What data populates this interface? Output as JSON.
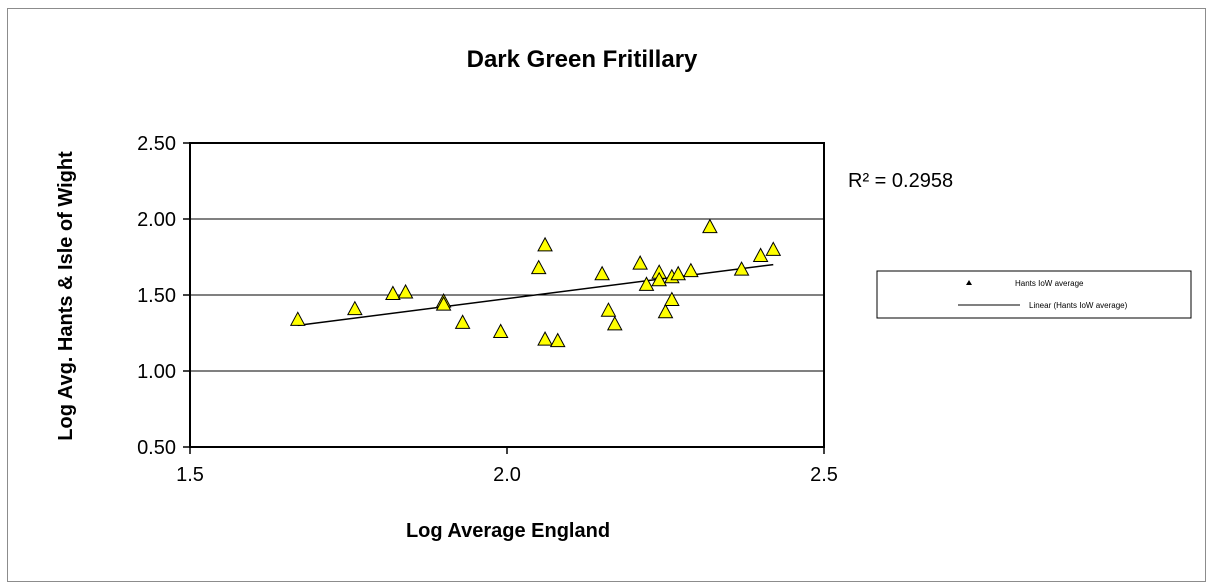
{
  "chart_data": {
    "type": "scatter",
    "title": "Dark Green Fritillary",
    "xlabel": "Log Average England",
    "ylabel": "Log Avg. Hants & Isle of Wight",
    "xlim": [
      1.5,
      2.5
    ],
    "ylim": [
      0.5,
      2.5
    ],
    "x_ticks": [
      "1.5",
      "2.0",
      "2.5"
    ],
    "y_ticks": [
      "0.50",
      "1.00",
      "1.50",
      "2.00",
      "2.50"
    ],
    "x_tick_values": [
      1.5,
      2.0,
      2.5
    ],
    "y_tick_values": [
      0.5,
      1.0,
      1.5,
      2.0,
      2.5
    ],
    "grid": "horizontal",
    "legend_position": "right",
    "series": [
      {
        "name": "Hants IoW average",
        "marker": "triangle",
        "color": "#ffff00",
        "edge_color": "#000000",
        "points": [
          [
            1.67,
            1.34
          ],
          [
            1.76,
            1.41
          ],
          [
            1.82,
            1.51
          ],
          [
            1.84,
            1.52
          ],
          [
            1.9,
            1.46
          ],
          [
            1.9,
            1.44
          ],
          [
            1.93,
            1.32
          ],
          [
            1.99,
            1.26
          ],
          [
            2.05,
            1.68
          ],
          [
            2.06,
            1.83
          ],
          [
            2.06,
            1.21
          ],
          [
            2.08,
            1.2
          ],
          [
            2.15,
            1.64
          ],
          [
            2.16,
            1.4
          ],
          [
            2.17,
            1.31
          ],
          [
            2.21,
            1.71
          ],
          [
            2.22,
            1.57
          ],
          [
            2.24,
            1.65
          ],
          [
            2.24,
            1.6
          ],
          [
            2.25,
            1.39
          ],
          [
            2.26,
            1.62
          ],
          [
            2.26,
            1.47
          ],
          [
            2.27,
            1.64
          ],
          [
            2.29,
            1.66
          ],
          [
            2.32,
            1.95
          ],
          [
            2.37,
            1.67
          ],
          [
            2.4,
            1.76
          ],
          [
            2.42,
            1.8
          ]
        ]
      }
    ],
    "trendline": {
      "name": "Linear (Hants IoW average)",
      "type": "linear",
      "start": [
        1.67,
        1.3
      ],
      "end": [
        2.42,
        1.7
      ],
      "color": "#000000",
      "r_squared_label": "R² = 0.2958"
    }
  }
}
